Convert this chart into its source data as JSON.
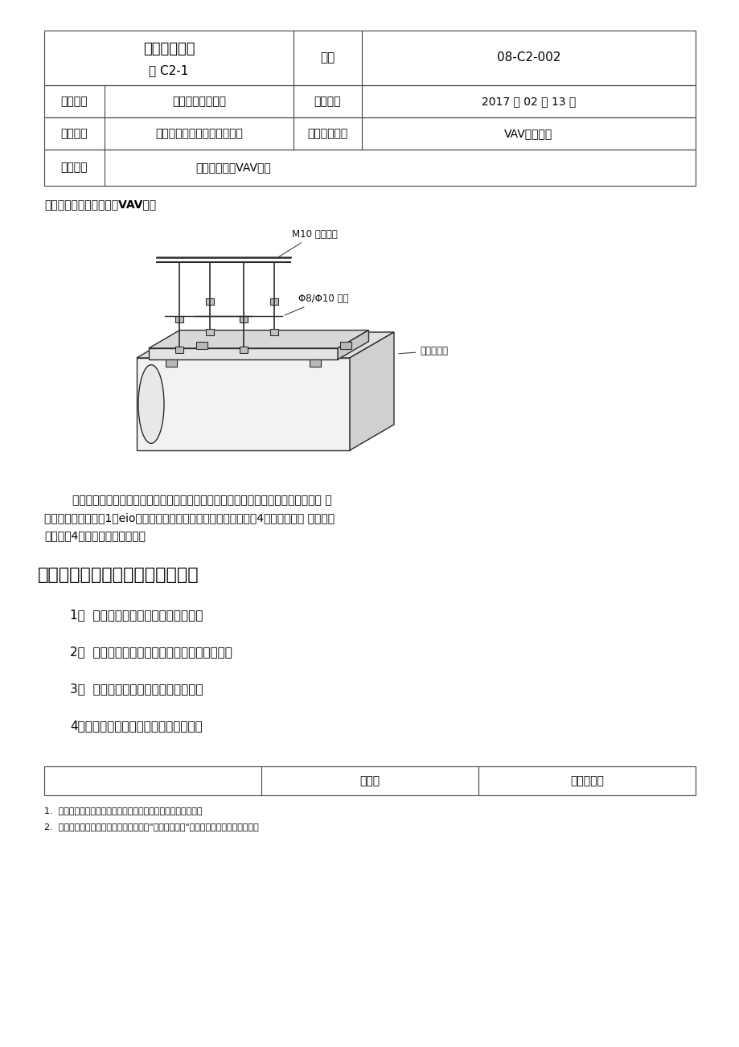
{
  "bg_color": "#ffffff",
  "title_line1": "技术交底记录",
  "title_line2": "表 C2-1",
  "code_label": "编号",
  "code_val": "08-C2-002",
  "row2_l1": "工程名称",
  "row2_v1": "北京腾讯总部大楼",
  "row2_l2": "交底日期",
  "row2_v2": "2017 年 02 月 13 日",
  "row3_l1": "施工单位",
  "row3_v1": "中国建筑第二工程局有限公司",
  "row3_l2": "分项工程名称",
  "row3_v2": "VAV设备安装",
  "row4_l1": "交底提要",
  "row4_v1": "吊装、变风量VAV设备",
  "content_label": "交底内容：吊装、变风量VAV设备",
  "para_line1": "        施工动力型变风量末端设备方法（见上图）及多年施工经验，采用膨胀螺栓或内爆胀 栓",
  "para_line2": "连接，即每节槽钢由1只eio国标膨胀螺栓固定于楼板上（每台设备由4只膨胀螺栓或 内爆胀栓",
  "para_line3": "固定，由4个橡胶减震器组成）。",
  "section_title": "六、安装前应严格执行以下几点：",
  "item1": "1、  清除变风量末端箱体内外的尘土。",
  "item2": "2、  检查箱体外壳是否完好，有无变形等缺陷。",
  "item3": "3、  检查箱体是否出现部件松动现象。",
  "item4": "4、检查箱体表面有无划伤、划花现象。",
  "footer_col1": "交底人",
  "footer_col2": "接受交底人",
  "fn1": "1.  本表由施工单位填写，交底单位与接受交底单位各保存一份。",
  "fn2": "2.  当做分项工程施工技术交底时，应填写\"分项工程名称\"栏，其他技术交底可不填写。",
  "annot_bolt": "M10 膨胀螺栓",
  "annot_steel": "Φ8/Φ10 圆钢",
  "annot_damper": "橡胶减震器"
}
